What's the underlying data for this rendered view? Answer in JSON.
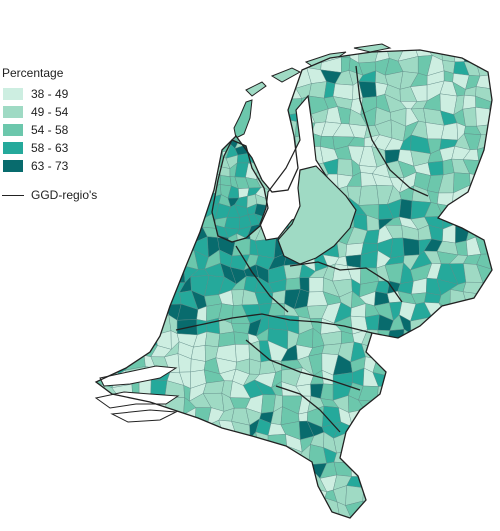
{
  "legend": {
    "title": "Percentage",
    "classes": [
      {
        "label": "38 - 49",
        "color": "#cdeee1"
      },
      {
        "label": "49 - 54",
        "color": "#9fdac4"
      },
      {
        "label": "54 - 58",
        "color": "#6cc7ac"
      },
      {
        "label": "58 - 63",
        "color": "#25a99b"
      },
      {
        "label": "63 - 73",
        "color": "#086b6d"
      }
    ],
    "boundary_label": "GGD-regio's",
    "boundary_color": "#222222"
  }
}
